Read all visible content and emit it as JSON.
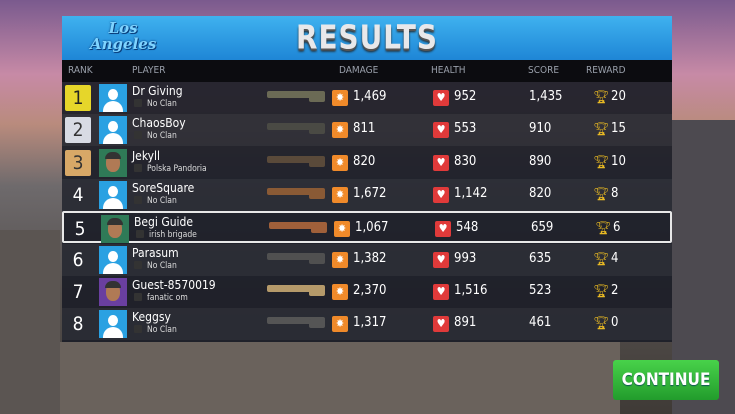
{
  "header": {
    "logo_text": "Los Angeles",
    "title": "RESULTS"
  },
  "columns": {
    "rank": "RANK",
    "player": "PLAYER",
    "damage": "DAMAGE",
    "health": "HEALTH",
    "score": "SCORE",
    "reward": "REWARD"
  },
  "rows": [
    {
      "rank": "1",
      "name": "Dr Giving",
      "clan": "No Clan",
      "damage": "1,469",
      "health": "952",
      "score": "1,435",
      "reward": "20"
    },
    {
      "rank": "2",
      "name": "ChaosBoy",
      "clan": "No Clan",
      "damage": "811",
      "health": "553",
      "score": "910",
      "reward": "15"
    },
    {
      "rank": "3",
      "name": "Jekyll",
      "clan": "Polska Pandoria",
      "damage": "820",
      "health": "830",
      "score": "890",
      "reward": "10"
    },
    {
      "rank": "4",
      "name": "SoreSquare",
      "clan": "No Clan",
      "damage": "1,672",
      "health": "1,142",
      "score": "820",
      "reward": "8"
    },
    {
      "rank": "5",
      "name": "Begi Guide",
      "clan": "irish brigade",
      "damage": "1,067",
      "health": "548",
      "score": "659",
      "reward": "6",
      "highlighted": true
    },
    {
      "rank": "6",
      "name": "Parasum",
      "clan": "No Clan",
      "damage": "1,382",
      "health": "993",
      "score": "635",
      "reward": "4"
    },
    {
      "rank": "7",
      "name": "Guest-8570019",
      "clan": "fanatic om",
      "damage": "2,370",
      "health": "1,516",
      "score": "523",
      "reward": "2"
    },
    {
      "rank": "8",
      "name": "Keggsy",
      "clan": "No Clan",
      "damage": "1,317",
      "health": "891",
      "score": "461",
      "reward": "0"
    }
  ],
  "continue_label": "CONTINUE",
  "colors": {
    "header": "#2a9be6",
    "continue": "#34b83a",
    "damage_icon": "#f08a2a",
    "health_icon": "#e03a3a",
    "trophy": "#e8b923"
  }
}
